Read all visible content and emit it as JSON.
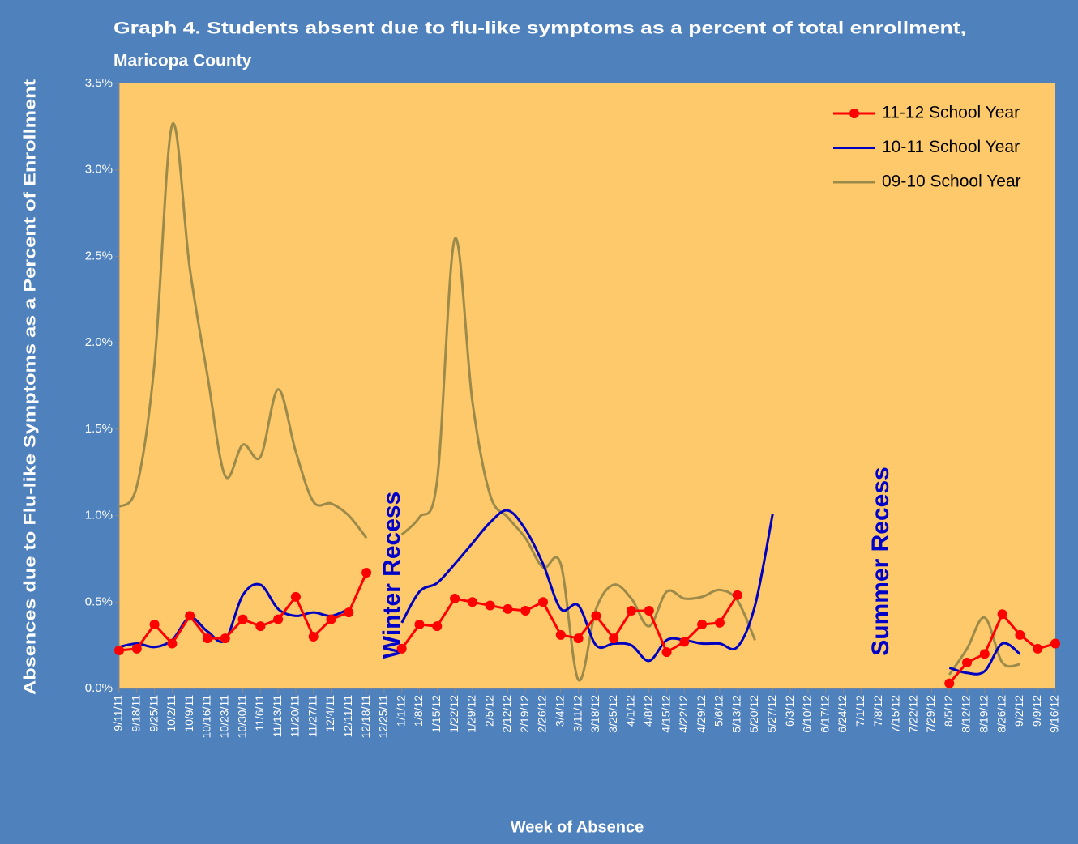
{
  "chart_data": {
    "type": "line",
    "title": [
      "Graph 4. Students absent due to flu-like symptoms as a percent of total enrollment,",
      "Maricopa County"
    ],
    "y_label": "Absences due to Flu-like Symptoms as a Percent of Enrollment",
    "x_label": "Week of Absence",
    "annotations": [
      "Winter Recess",
      "Summer Recess"
    ],
    "categories": [
      "9/11/11",
      "9/18/11",
      "9/25/11",
      "10/2/11",
      "10/9/11",
      "10/16/11",
      "10/23/11",
      "10/30/11",
      "11/6/11",
      "11/13/11",
      "11/20/11",
      "11/27/11",
      "12/4/11",
      "12/11/11",
      "12/18/11",
      "12/25/11",
      "1/1/12",
      "1/8/12",
      "1/15/12",
      "1/22/12",
      "1/29/12",
      "2/5/12",
      "2/12/12",
      "2/19/12",
      "2/26/12",
      "3/4/12",
      "3/11/12",
      "3/18/12",
      "3/25/12",
      "4/1/12",
      "4/8/12",
      "4/15/12",
      "4/22/12",
      "4/29/12",
      "5/6/12",
      "5/13/12",
      "5/20/12",
      "5/27/12",
      "6/3/12",
      "6/10/12",
      "6/17/12",
      "6/24/12",
      "7/1/12",
      "7/8/12",
      "7/15/12",
      "7/22/12",
      "7/29/12",
      "8/5/12",
      "8/12/12",
      "8/19/12",
      "8/26/12",
      "9/2/12",
      "9/9/12",
      "9/16/12"
    ],
    "series": [
      {
        "name": "11-12 School Year",
        "color": "#ff0000",
        "marker": true,
        "smooth": false,
        "values": [
          0.22,
          0.23,
          0.37,
          0.26,
          0.42,
          0.29,
          0.29,
          0.4,
          0.36,
          0.4,
          0.53,
          0.3,
          0.4,
          0.44,
          0.67,
          null,
          0.23,
          0.37,
          0.36,
          0.52,
          0.5,
          0.48,
          0.46,
          0.45,
          0.5,
          0.31,
          0.29,
          0.42,
          0.29,
          0.45,
          0.45,
          0.21,
          0.27,
          0.37,
          0.38,
          0.54,
          null,
          null,
          null,
          null,
          null,
          null,
          null,
          null,
          null,
          null,
          null,
          0.03,
          0.15,
          0.2,
          0.43,
          0.31,
          0.23,
          0.26
        ]
      },
      {
        "name": "10-11 School Year",
        "color": "#0000c0",
        "marker": false,
        "smooth": true,
        "values": [
          0.24,
          0.26,
          0.24,
          0.28,
          0.41,
          0.33,
          0.28,
          0.54,
          0.6,
          0.46,
          0.42,
          0.44,
          0.42,
          0.46,
          null,
          null,
          0.38,
          0.56,
          0.61,
          0.72,
          0.84,
          0.96,
          1.03,
          0.92,
          0.72,
          0.46,
          0.48,
          0.25,
          0.26,
          0.25,
          0.16,
          0.28,
          0.28,
          0.26,
          0.26,
          0.24,
          0.48,
          1.01,
          null,
          null,
          null,
          null,
          null,
          null,
          null,
          null,
          null,
          0.12,
          0.09,
          0.1,
          0.26,
          0.2,
          null,
          null
        ]
      },
      {
        "name": "09-10 School Year",
        "color": "#9c8a4a",
        "marker": false,
        "smooth": true,
        "values": [
          1.05,
          1.17,
          1.88,
          3.26,
          2.43,
          1.81,
          1.23,
          1.41,
          1.34,
          1.73,
          1.37,
          1.08,
          1.07,
          1.0,
          0.87,
          null,
          0.89,
          0.99,
          1.2,
          2.6,
          1.66,
          1.12,
          0.99,
          0.87,
          0.7,
          0.72,
          0.05,
          0.46,
          0.6,
          0.52,
          0.36,
          0.56,
          0.52,
          0.53,
          0.57,
          0.51,
          0.28,
          null,
          null,
          null,
          null,
          null,
          null,
          null,
          null,
          null,
          null,
          0.08,
          0.23,
          0.41,
          0.15,
          0.14,
          null,
          null
        ]
      }
    ],
    "ylim": [
      0,
      3.5
    ],
    "yticks": [
      {
        "value": 0,
        "label": "0.0%"
      },
      {
        "value": 0.5,
        "label": "0.5%"
      },
      {
        "value": 1,
        "label": "1.0%"
      },
      {
        "value": 1.5,
        "label": "1.5%"
      },
      {
        "value": 2,
        "label": "2.0%"
      },
      {
        "value": 2.5,
        "label": "2.5%"
      },
      {
        "value": 3,
        "label": "3.0%"
      },
      {
        "value": 3.5,
        "label": "3.5%"
      }
    ],
    "grid": false,
    "legend": "upper right"
  }
}
